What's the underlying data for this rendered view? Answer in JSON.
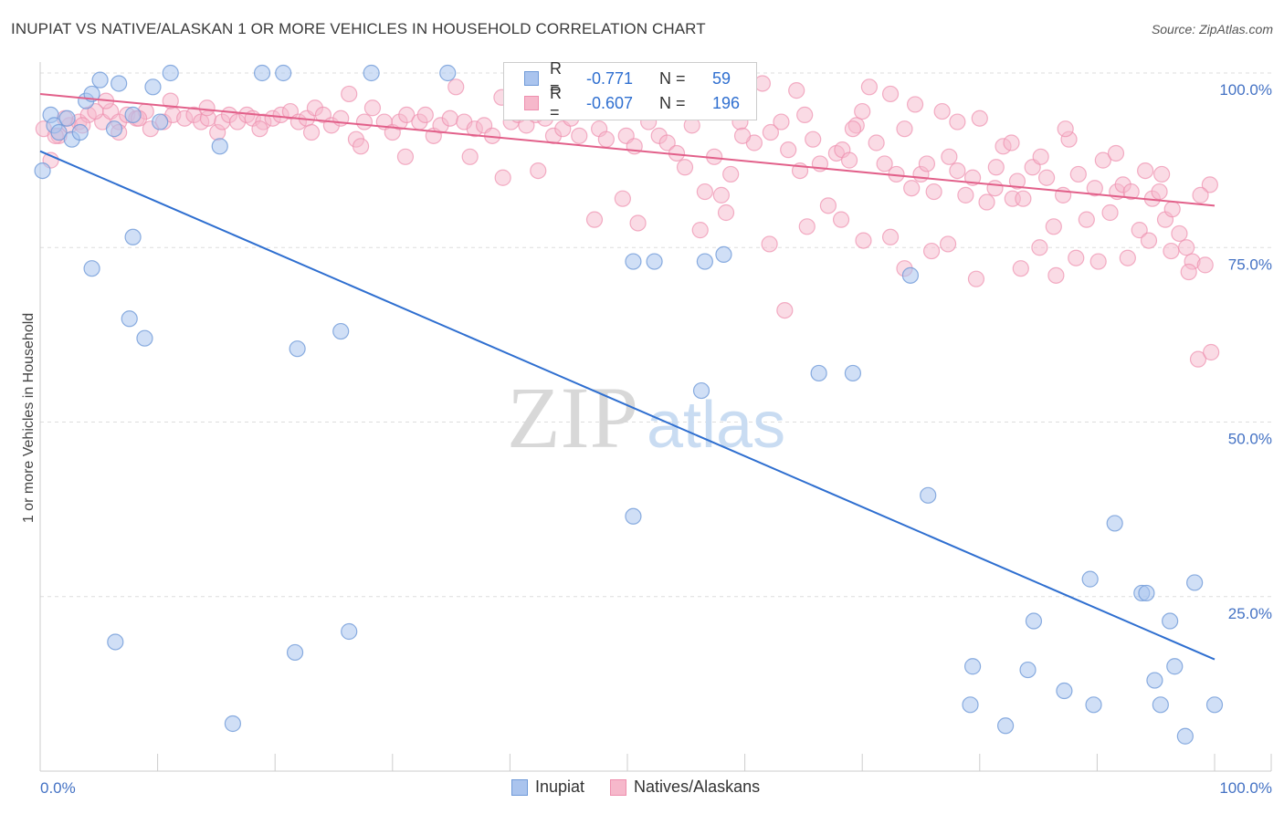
{
  "title": "INUPIAT VS NATIVE/ALASKAN 1 OR MORE VEHICLES IN HOUSEHOLD CORRELATION CHART",
  "source": "Source: ZipAtlas.com",
  "watermark": {
    "zip": "ZIP",
    "atlas": "atlas"
  },
  "legend": {
    "r_label": "R =",
    "n_label": "N =",
    "series": [
      {
        "name": "Inupiat",
        "r": "-0.771",
        "n": "59"
      },
      {
        "name": "Natives/Alaskans",
        "r": "-0.607",
        "n": "196"
      }
    ]
  },
  "colors": {
    "blue_fill": "#aac4ee",
    "blue_stroke": "#6f9ad8",
    "blue_line": "#2f6fd0",
    "pink_fill": "#f6b8cb",
    "pink_stroke": "#ee8fae",
    "pink_line": "#e2608a",
    "label_blue": "#4472c4"
  },
  "chart_data": {
    "type": "scatter",
    "title": "INUPIAT VS NATIVE/ALASKAN 1 OR MORE VEHICLES IN HOUSEHOLD CORRELATION CHART",
    "xlabel": "",
    "ylabel": "1 or more Vehicles in Household",
    "xlim": [
      0,
      100
    ],
    "ylim": [
      0,
      102
    ],
    "x_tick_labels": [
      "0.0%",
      "100.0%"
    ],
    "y_tick_labels": [
      "100.0%",
      "75.0%",
      "50.0%",
      "25.0%"
    ],
    "y_ticks": [
      100,
      75,
      50,
      25
    ],
    "series": [
      {
        "name": "Inupiat",
        "trend": {
          "x": [
            0,
            100
          ],
          "y": [
            88.8,
            16
          ]
        },
        "points": [
          [
            0.2,
            86
          ],
          [
            0.9,
            94
          ],
          [
            1.2,
            92.5
          ],
          [
            1.6,
            91.5
          ],
          [
            2.3,
            93.5
          ],
          [
            2.7,
            90.5
          ],
          [
            3.4,
            91.5
          ],
          [
            3.9,
            96
          ],
          [
            4.4,
            97
          ],
          [
            5.1,
            99
          ],
          [
            6.3,
            92
          ],
          [
            6.7,
            98.5
          ],
          [
            7.9,
            94
          ],
          [
            9.6,
            98
          ],
          [
            10.2,
            93
          ],
          [
            11.1,
            100
          ],
          [
            15.3,
            89.5
          ],
          [
            18.9,
            100
          ],
          [
            20.7,
            100
          ],
          [
            28.2,
            100
          ],
          [
            34.7,
            100
          ],
          [
            4.4,
            72
          ],
          [
            7.9,
            76.5
          ],
          [
            7.6,
            64.8
          ],
          [
            8.9,
            62
          ],
          [
            21.9,
            60.5
          ],
          [
            25.6,
            63
          ],
          [
            50.5,
            36.5
          ],
          [
            50.5,
            73
          ],
          [
            52.3,
            73
          ],
          [
            56.3,
            54.5
          ],
          [
            56.6,
            73
          ],
          [
            58.2,
            74
          ],
          [
            66.3,
            57
          ],
          [
            69.2,
            57
          ],
          [
            74.1,
            71
          ],
          [
            75.6,
            39.5
          ],
          [
            79.2,
            9.5
          ],
          [
            79.4,
            15
          ],
          [
            82.2,
            6.5
          ],
          [
            84.1,
            14.5
          ],
          [
            84.6,
            21.5
          ],
          [
            87.2,
            11.5
          ],
          [
            89.4,
            27.5
          ],
          [
            89.7,
            9.5
          ],
          [
            91.5,
            35.5
          ],
          [
            93.8,
            25.5
          ],
          [
            94.2,
            25.5
          ],
          [
            94.9,
            13
          ],
          [
            95.4,
            9.5
          ],
          [
            96.2,
            21.5
          ],
          [
            96.6,
            15
          ],
          [
            97.5,
            5
          ],
          [
            98.3,
            27
          ],
          [
            100,
            9.5
          ],
          [
            6.4,
            18.5
          ],
          [
            16.4,
            6.8
          ],
          [
            21.7,
            17
          ],
          [
            26.3,
            20
          ]
        ]
      },
      {
        "name": "Natives/Alaskans",
        "trend": {
          "x": [
            0,
            100
          ],
          "y": [
            97,
            81
          ]
        },
        "points": [
          [
            0.3,
            92
          ],
          [
            0.9,
            87.5
          ],
          [
            1.6,
            91
          ],
          [
            2.5,
            92.5
          ],
          [
            3.3,
            93
          ],
          [
            4.1,
            94
          ],
          [
            5.3,
            93
          ],
          [
            6,
            94.5
          ],
          [
            6.7,
            93
          ],
          [
            7.4,
            94
          ],
          [
            8.2,
            93.5
          ],
          [
            9,
            94.5
          ],
          [
            9.4,
            92
          ],
          [
            10.5,
            93
          ],
          [
            11.3,
            94
          ],
          [
            12.3,
            93.5
          ],
          [
            13.1,
            94
          ],
          [
            13.7,
            93
          ],
          [
            14.3,
            93.5
          ],
          [
            15.1,
            91.5
          ],
          [
            15.5,
            93
          ],
          [
            16.1,
            94
          ],
          [
            16.8,
            93
          ],
          [
            17.6,
            94
          ],
          [
            18.1,
            93.5
          ],
          [
            19,
            93
          ],
          [
            19.8,
            93.5
          ],
          [
            20.5,
            94
          ],
          [
            21.3,
            94.5
          ],
          [
            22,
            93
          ],
          [
            22.7,
            93.5
          ],
          [
            23.4,
            95
          ],
          [
            24.1,
            94
          ],
          [
            24.8,
            92.5
          ],
          [
            25.6,
            93.5
          ],
          [
            26.3,
            97
          ],
          [
            26.9,
            90.5
          ],
          [
            27.6,
            93
          ],
          [
            28.3,
            95
          ],
          [
            29.3,
            93
          ],
          [
            30,
            91.5
          ],
          [
            30.6,
            93
          ],
          [
            31.2,
            94
          ],
          [
            32.3,
            93
          ],
          [
            32.8,
            94
          ],
          [
            33.5,
            91
          ],
          [
            34.1,
            92.5
          ],
          [
            34.9,
            93.5
          ],
          [
            35.4,
            98
          ],
          [
            36.1,
            93
          ],
          [
            37,
            92
          ],
          [
            37.8,
            92.5
          ],
          [
            38.5,
            91
          ],
          [
            39.3,
            96.5
          ],
          [
            40.1,
            93
          ],
          [
            40.7,
            94
          ],
          [
            41.4,
            92.5
          ],
          [
            42.2,
            94
          ],
          [
            43,
            93.5
          ],
          [
            43.7,
            91
          ],
          [
            44.5,
            92
          ],
          [
            45.2,
            93.5
          ],
          [
            45.9,
            91
          ],
          [
            46.7,
            95.5
          ],
          [
            47.6,
            92
          ],
          [
            48.2,
            90.5
          ],
          [
            48.8,
            95
          ],
          [
            49.2,
            97
          ],
          [
            49.9,
            91
          ],
          [
            50.6,
            89.5
          ],
          [
            51.3,
            95
          ],
          [
            51.8,
            93
          ],
          [
            52.7,
            91
          ],
          [
            53.4,
            90
          ],
          [
            54.2,
            88.5
          ],
          [
            54.9,
            86.5
          ],
          [
            55.5,
            92.5
          ],
          [
            56,
            96
          ],
          [
            56.6,
            83
          ],
          [
            57.4,
            88
          ],
          [
            58,
            82.5
          ],
          [
            58.8,
            85.5
          ],
          [
            59.6,
            93
          ],
          [
            60.2,
            96.5
          ],
          [
            60.8,
            90
          ],
          [
            61.5,
            98.5
          ],
          [
            62.2,
            91.5
          ],
          [
            63.1,
            93
          ],
          [
            63.7,
            89
          ],
          [
            64.4,
            97.5
          ],
          [
            65.1,
            94
          ],
          [
            65.8,
            90.5
          ],
          [
            66.4,
            87
          ],
          [
            67.1,
            81
          ],
          [
            67.8,
            88.5
          ],
          [
            68.3,
            89
          ],
          [
            68.9,
            87.5
          ],
          [
            69.5,
            92.5
          ],
          [
            70,
            94.5
          ],
          [
            70.6,
            98
          ],
          [
            71.2,
            90
          ],
          [
            71.9,
            87
          ],
          [
            72.4,
            97
          ],
          [
            72.9,
            85.5
          ],
          [
            73.6,
            92
          ],
          [
            74.2,
            83.5
          ],
          [
            75,
            85.5
          ],
          [
            75.5,
            87
          ],
          [
            76.1,
            83
          ],
          [
            76.8,
            94.5
          ],
          [
            77.4,
            88
          ],
          [
            78.1,
            86
          ],
          [
            78.8,
            82.5
          ],
          [
            79.4,
            85
          ],
          [
            80,
            93.5
          ],
          [
            80.6,
            81.5
          ],
          [
            81.4,
            86.5
          ],
          [
            82,
            89.5
          ],
          [
            82.8,
            82
          ],
          [
            83.2,
            84.5
          ],
          [
            83.7,
            82
          ],
          [
            84.5,
            86.5
          ],
          [
            85.2,
            88
          ],
          [
            85.7,
            85
          ],
          [
            86.3,
            78
          ],
          [
            87.1,
            82.5
          ],
          [
            87.6,
            90.5
          ],
          [
            88.4,
            85.5
          ],
          [
            89.1,
            79
          ],
          [
            89.8,
            83.5
          ],
          [
            90.5,
            87.5
          ],
          [
            91.1,
            80
          ],
          [
            91.7,
            83
          ],
          [
            92.2,
            84
          ],
          [
            92.9,
            83
          ],
          [
            93.6,
            77.5
          ],
          [
            94.1,
            86
          ],
          [
            94.7,
            82
          ],
          [
            95.3,
            83
          ],
          [
            95.8,
            79
          ],
          [
            96.4,
            80.5
          ],
          [
            97,
            77
          ],
          [
            97.6,
            75
          ],
          [
            98.1,
            73
          ],
          [
            98.6,
            59
          ],
          [
            99.2,
            72.5
          ],
          [
            99.6,
            84
          ],
          [
            8.4,
            93.5
          ],
          [
            5.6,
            96
          ],
          [
            6.7,
            91.5
          ],
          [
            11.1,
            96
          ],
          [
            14.2,
            95
          ],
          [
            18.7,
            92
          ],
          [
            23.1,
            91.5
          ],
          [
            27.3,
            89.5
          ],
          [
            31.1,
            88
          ],
          [
            36.6,
            88
          ],
          [
            39.4,
            85
          ],
          [
            42.4,
            86
          ],
          [
            47.2,
            79
          ],
          [
            49.6,
            82
          ],
          [
            50.9,
            78.5
          ],
          [
            56.2,
            77.5
          ],
          [
            58.4,
            80
          ],
          [
            62.1,
            75.5
          ],
          [
            63.4,
            66
          ],
          [
            65.3,
            78
          ],
          [
            68.2,
            79
          ],
          [
            70.1,
            76
          ],
          [
            72.4,
            76.5
          ],
          [
            73.6,
            72
          ],
          [
            75.9,
            74.5
          ],
          [
            77.3,
            75.5
          ],
          [
            79.7,
            70.5
          ],
          [
            81.3,
            83.5
          ],
          [
            83.5,
            72
          ],
          [
            85.1,
            75
          ],
          [
            86.5,
            71
          ],
          [
            88.2,
            73.5
          ],
          [
            90.1,
            73
          ],
          [
            92.6,
            73.5
          ],
          [
            94.4,
            76
          ],
          [
            96.3,
            74.5
          ],
          [
            97.8,
            71.5
          ],
          [
            99.7,
            60
          ],
          [
            59.8,
            91
          ],
          [
            64.7,
            86
          ],
          [
            69.2,
            92
          ],
          [
            74.5,
            95.5
          ],
          [
            78.1,
            93
          ],
          [
            82.7,
            90
          ],
          [
            87.3,
            92
          ],
          [
            91.6,
            88.5
          ],
          [
            95.5,
            85.5
          ],
          [
            98.8,
            82.5
          ],
          [
            1.3,
            91
          ],
          [
            2.1,
            93.5
          ],
          [
            3.6,
            92.5
          ],
          [
            4.7,
            94.5
          ]
        ]
      }
    ]
  }
}
